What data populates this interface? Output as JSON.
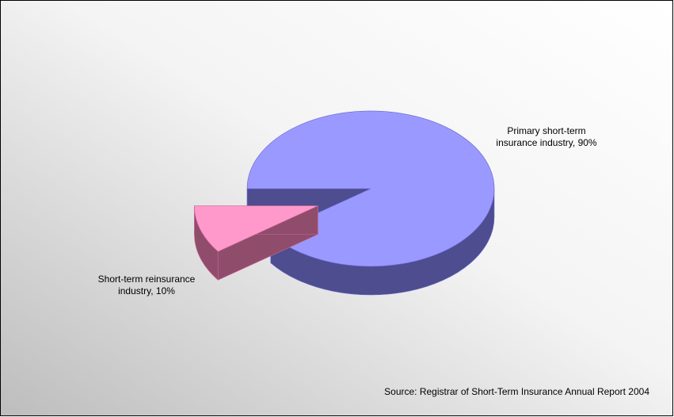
{
  "chart_data": {
    "type": "pie3d",
    "values": [
      90,
      10
    ],
    "value_labels": [
      "Primary short-term insurance industry, 90%",
      "Short-term reinsurance industry, 10%"
    ],
    "colors": [
      "#9999ff",
      "#ff99cc"
    ],
    "side_colors": [
      "#4d4d8f",
      "#8f4d6b"
    ],
    "source": "Source: Registrar of Short-Term Insurance Annual Report 2004"
  }
}
